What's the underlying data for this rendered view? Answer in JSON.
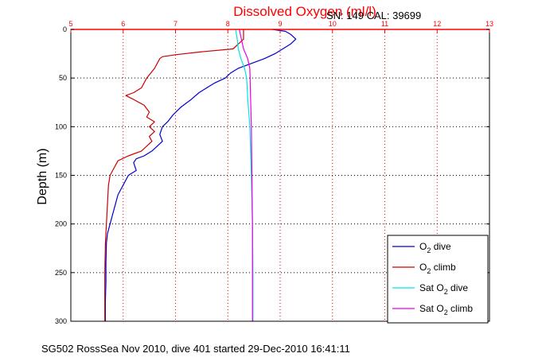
{
  "chart_data": {
    "type": "line",
    "title": "Dissolved Oxygen (ml/l)",
    "title_color": "#ff0000",
    "corner_text": "SN: 149   CAL: 39699",
    "ylabel": "Depth (m)",
    "footer": "SG502 RossSea Nov 2010, dive 401 started 29-Dec-2010 16:41:11",
    "x_axis_position": "top",
    "x_axis_color": "#ff0000",
    "y_reversed": true,
    "xlim": [
      5,
      13
    ],
    "ylim": [
      0,
      300
    ],
    "xticks": [
      5,
      6,
      7,
      8,
      9,
      10,
      11,
      12,
      13
    ],
    "yticks": [
      0,
      50,
      100,
      150,
      200,
      250,
      300
    ],
    "grid": true,
    "legend_position": "bottom-right",
    "series": [
      {
        "label_main": "O",
        "label_sub": "2",
        "label_tail": " dive",
        "color": "#0000cc",
        "points": [
          [
            8.85,
            0
          ],
          [
            9.1,
            2
          ],
          [
            9.2,
            5
          ],
          [
            9.3,
            10
          ],
          [
            9.2,
            15
          ],
          [
            9.05,
            20
          ],
          [
            8.9,
            25
          ],
          [
            8.7,
            30
          ],
          [
            8.45,
            35
          ],
          [
            8.2,
            40
          ],
          [
            8.05,
            45
          ],
          [
            7.95,
            50
          ],
          [
            7.75,
            55
          ],
          [
            7.6,
            60
          ],
          [
            7.45,
            65
          ],
          [
            7.3,
            72
          ],
          [
            7.1,
            80
          ],
          [
            6.95,
            88
          ],
          [
            6.85,
            95
          ],
          [
            6.75,
            100
          ],
          [
            6.7,
            108
          ],
          [
            6.75,
            115
          ],
          [
            6.65,
            120
          ],
          [
            6.55,
            125
          ],
          [
            6.4,
            130
          ],
          [
            6.25,
            133
          ],
          [
            6.2,
            137
          ],
          [
            6.25,
            145
          ],
          [
            6.1,
            150
          ],
          [
            6.0,
            160
          ],
          [
            5.95,
            165
          ],
          [
            5.9,
            170
          ],
          [
            5.85,
            180
          ],
          [
            5.8,
            190
          ],
          [
            5.75,
            200
          ],
          [
            5.7,
            210
          ],
          [
            5.68,
            220
          ],
          [
            5.67,
            240
          ],
          [
            5.67,
            260
          ],
          [
            5.66,
            280
          ],
          [
            5.66,
            300
          ]
        ]
      },
      {
        "label_main": "O",
        "label_sub": "2",
        "label_tail": " climb",
        "color": "#cc0000",
        "points": [
          [
            8.3,
            0
          ],
          [
            8.3,
            10
          ],
          [
            8.2,
            15
          ],
          [
            8.1,
            20
          ],
          [
            7.5,
            23
          ],
          [
            7.0,
            26
          ],
          [
            6.75,
            28
          ],
          [
            6.7,
            30
          ],
          [
            6.6,
            40
          ],
          [
            6.45,
            50
          ],
          [
            6.35,
            60
          ],
          [
            6.2,
            65
          ],
          [
            6.05,
            68
          ],
          [
            6.2,
            72
          ],
          [
            6.4,
            78
          ],
          [
            6.5,
            85
          ],
          [
            6.45,
            90
          ],
          [
            6.6,
            95
          ],
          [
            6.5,
            100
          ],
          [
            6.6,
            105
          ],
          [
            6.5,
            110
          ],
          [
            6.55,
            115
          ],
          [
            6.45,
            120
          ],
          [
            6.35,
            125
          ],
          [
            6.1,
            130
          ],
          [
            5.9,
            135
          ],
          [
            5.85,
            140
          ],
          [
            5.8,
            145
          ],
          [
            5.75,
            150
          ],
          [
            5.72,
            160
          ],
          [
            5.7,
            180
          ],
          [
            5.68,
            200
          ],
          [
            5.66,
            220
          ],
          [
            5.65,
            250
          ],
          [
            5.65,
            280
          ],
          [
            5.65,
            300
          ]
        ]
      },
      {
        "label_main": "Sat O",
        "label_sub": "2",
        "label_tail": " dive",
        "color": "#00e5e5",
        "points": [
          [
            8.15,
            0
          ],
          [
            8.18,
            10
          ],
          [
            8.2,
            20
          ],
          [
            8.25,
            30
          ],
          [
            8.32,
            40
          ],
          [
            8.36,
            50
          ],
          [
            8.38,
            70
          ],
          [
            8.42,
            100
          ],
          [
            8.45,
            150
          ],
          [
            8.47,
            200
          ],
          [
            8.48,
            250
          ],
          [
            8.48,
            300
          ]
        ]
      },
      {
        "label_main": "Sat O",
        "label_sub": "2",
        "label_tail": " climb",
        "color": "#e600e6",
        "points": [
          [
            8.22,
            0
          ],
          [
            8.26,
            10
          ],
          [
            8.3,
            20
          ],
          [
            8.38,
            30
          ],
          [
            8.42,
            40
          ],
          [
            8.43,
            60
          ],
          [
            8.45,
            100
          ],
          [
            8.46,
            150
          ],
          [
            8.47,
            200
          ],
          [
            8.47,
            250
          ],
          [
            8.47,
            300
          ]
        ]
      }
    ]
  }
}
